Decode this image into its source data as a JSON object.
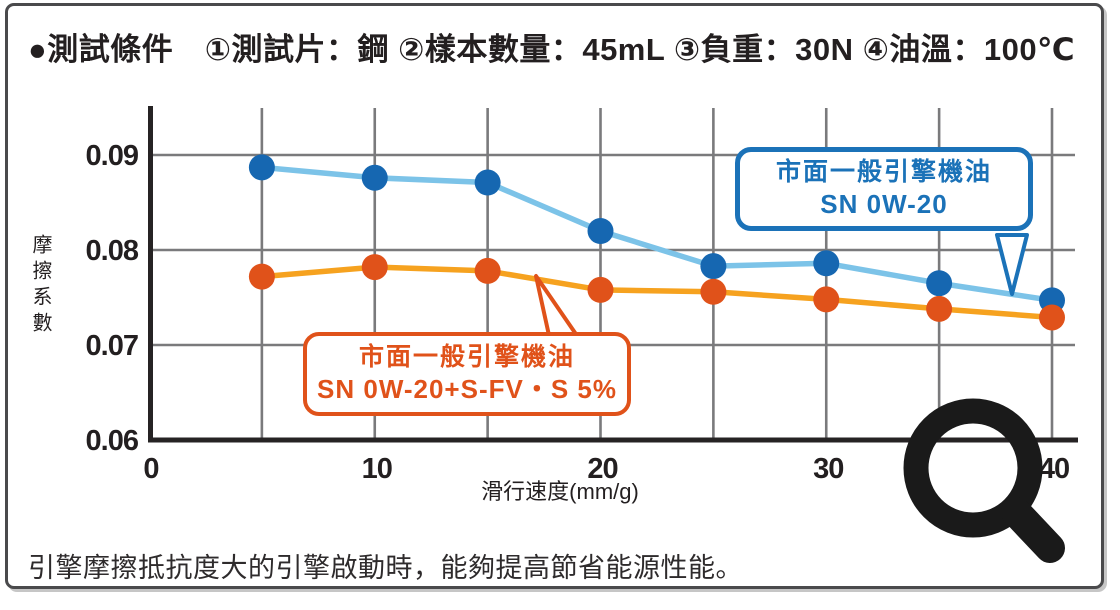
{
  "panel": {
    "header": "●測試條件　①測試片：鋼 ②樣本數量：45mL ③負重：30N ④油溫：100℃",
    "caption": "引擎摩擦抵抗度大的引擎啟動時，能夠提高節省能源性能。"
  },
  "chart_data": {
    "type": "line",
    "title": "",
    "xlabel": "滑行速度(mm/g)",
    "ylabel": "摩擦系數",
    "xlim": [
      0,
      40
    ],
    "ylim": [
      0.06,
      0.095
    ],
    "grid": true,
    "x": [
      5,
      10,
      15,
      20,
      25,
      30,
      35,
      40
    ],
    "series": [
      {
        "name": "市面一般引擎機油 SN 0W-20",
        "marker_color": "#1667b1",
        "line_color": "#7cc3e8",
        "values": [
          0.0887,
          0.0876,
          0.0871,
          0.082,
          0.0783,
          0.0786,
          0.0765,
          0.0747
        ]
      },
      {
        "name": "市面一般引擎機油 SN 0W-20+S-FV・S 5%",
        "marker_color": "#e0521a",
        "line_color": "#f6a21f",
        "values": [
          0.0772,
          0.0782,
          0.0778,
          0.0758,
          0.0756,
          0.0748,
          0.0738,
          0.0729
        ]
      }
    ],
    "yticks": [
      0.06,
      0.07,
      0.08,
      0.09
    ],
    "xticks_labeled": [
      0,
      10,
      20,
      30,
      40
    ],
    "xticks_grid": [
      5,
      10,
      15,
      20,
      25,
      30,
      35,
      40
    ],
    "axis_color": "#262324",
    "grid_color": "#7a7a7c",
    "legend_position": "callouts-on-plot"
  },
  "callouts": {
    "blue": {
      "line1": "市面一般引擎機油",
      "line2": "SN 0W-20",
      "color": "#1b72b8"
    },
    "orange": {
      "line1": "市面一般引擎機油",
      "line2": "SN 0W-20+S-FV・S 5%",
      "color": "#e0521a"
    }
  },
  "icons": {
    "magnifier": "zoom-icon"
  }
}
